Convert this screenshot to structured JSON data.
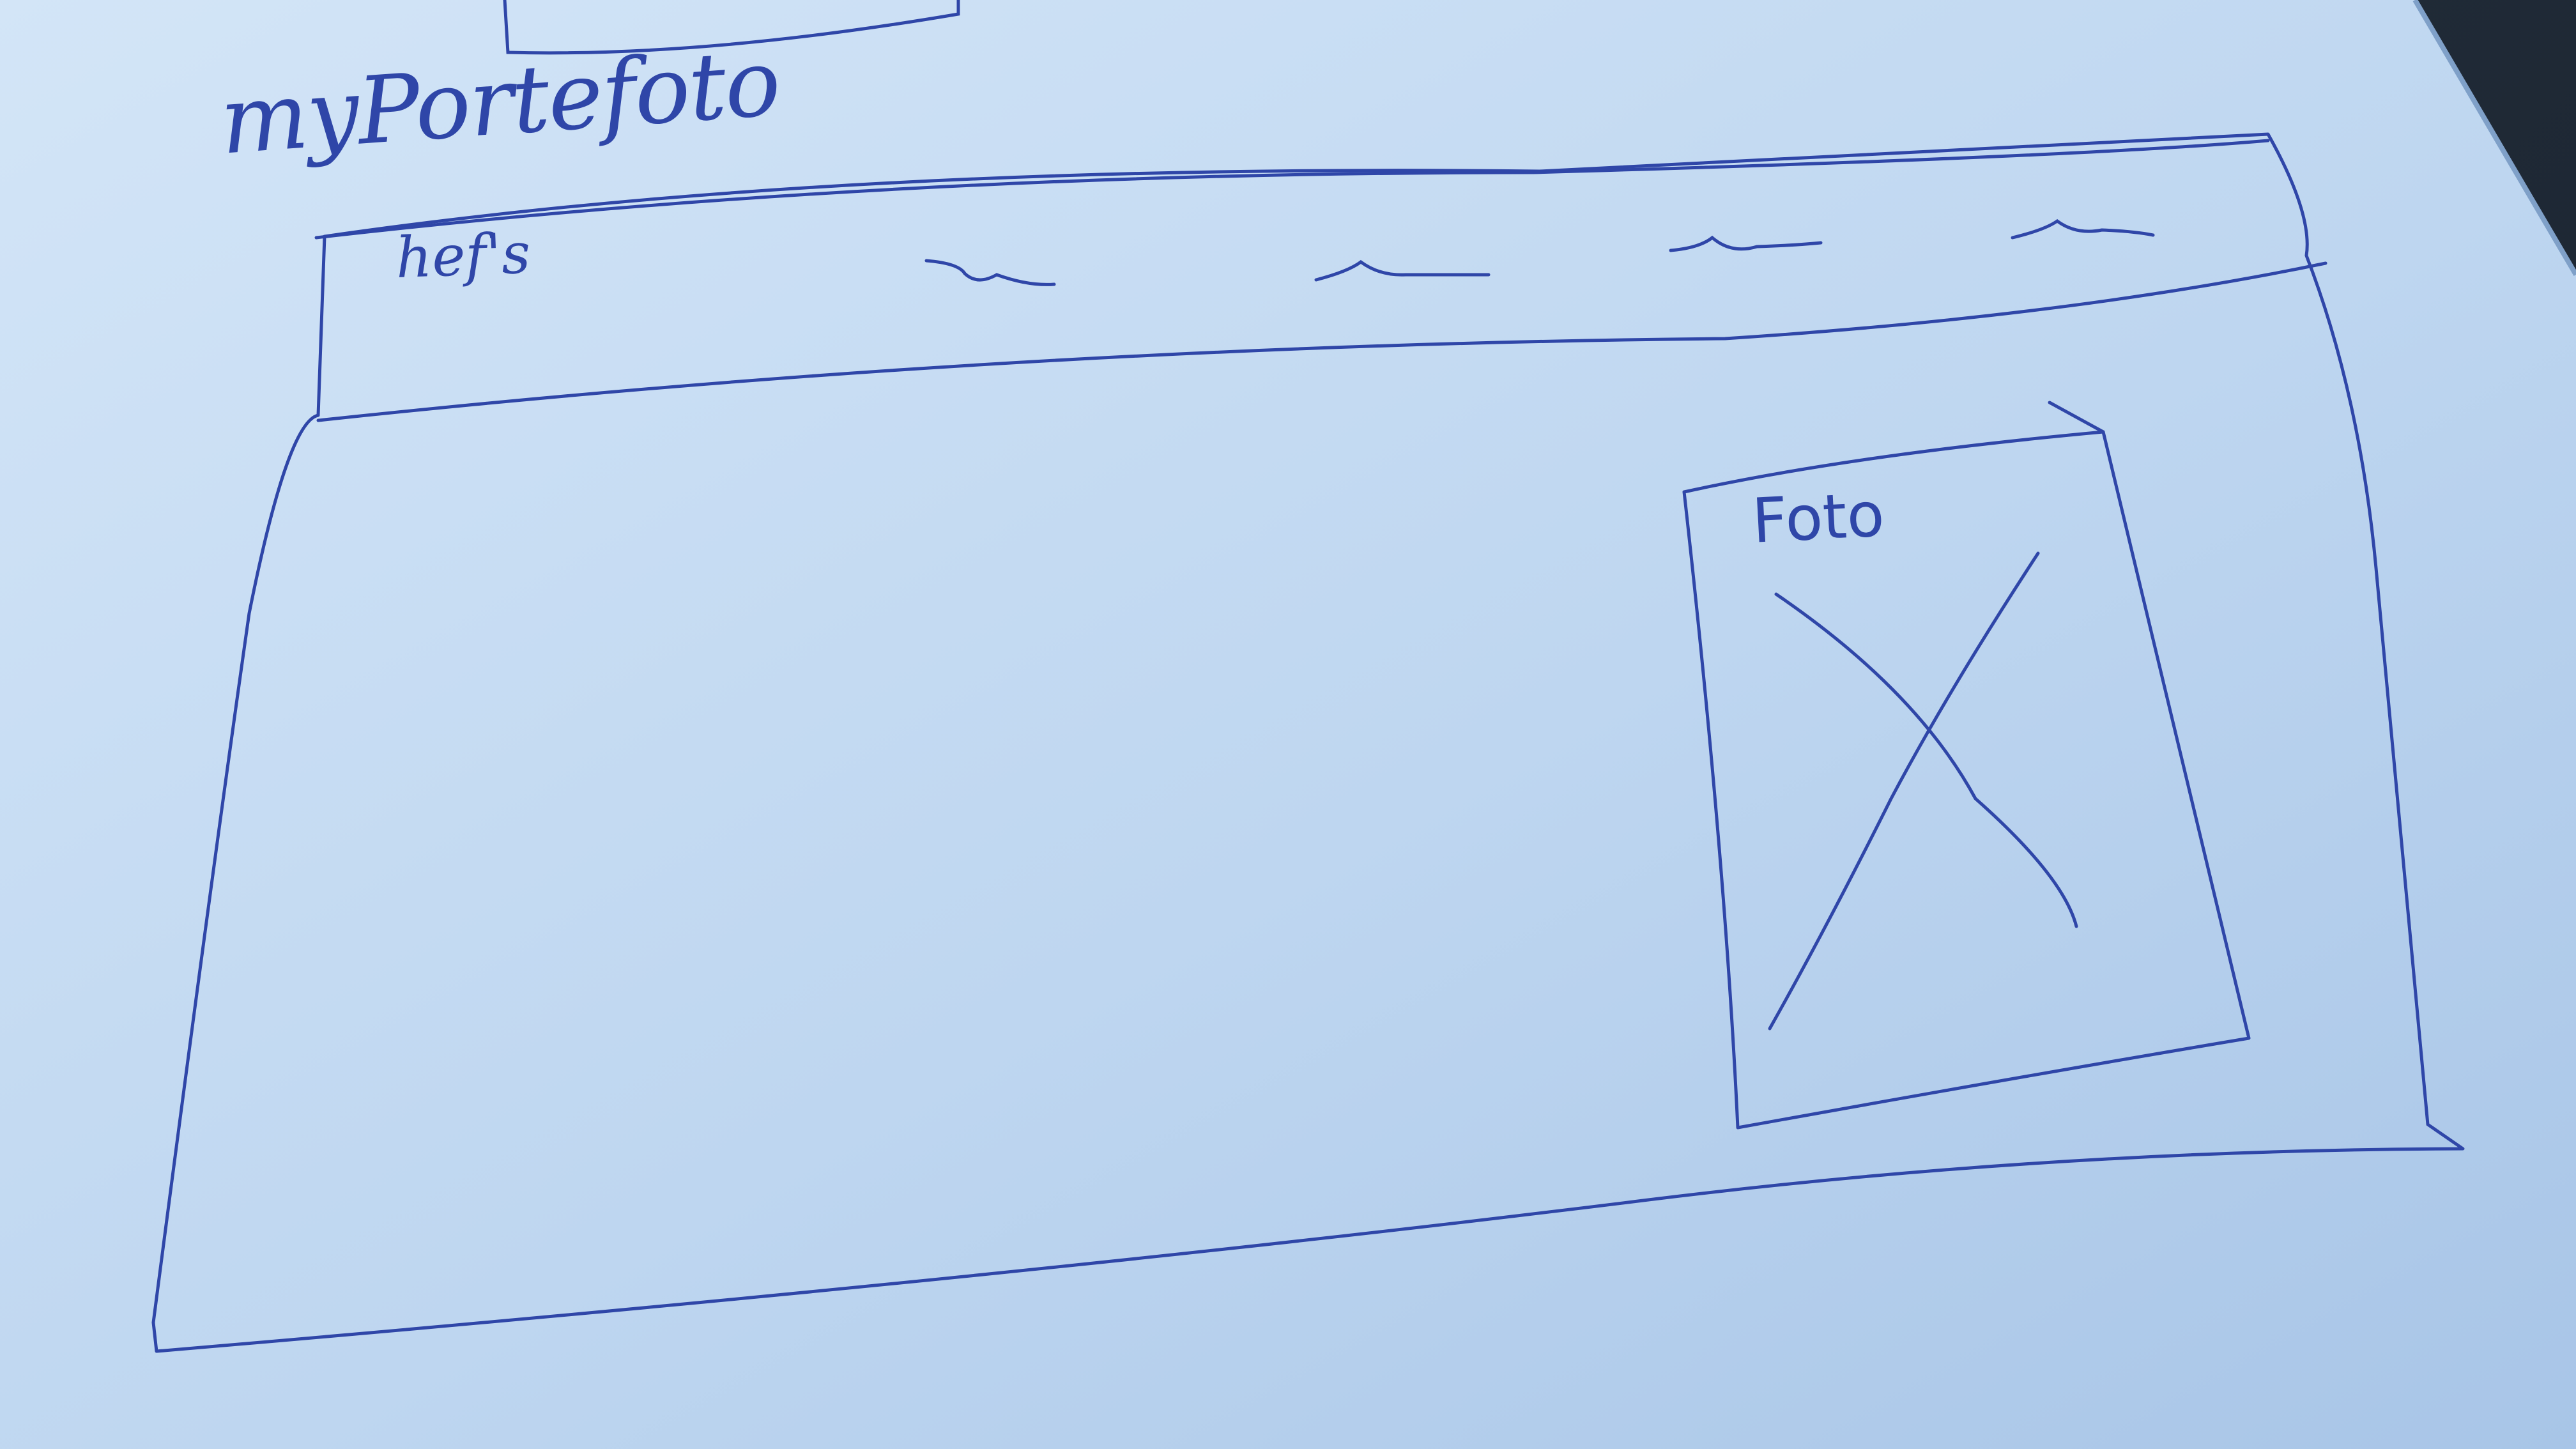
{
  "sketch": {
    "title": "myPortefoto",
    "navbar": {
      "brand_label": "hef's"
    },
    "main": {
      "photo_placeholder_label": "Foto"
    }
  },
  "colors": {
    "ink": "#2f46a8",
    "paper": "#c6dcf2",
    "paper_shadow": "#a9c7e8",
    "background": "#1f2a36"
  },
  "icons": {
    "nav_items": [
      "scribble-icon",
      "scribble-icon",
      "scribble-icon",
      "scribble-icon"
    ],
    "photo_placeholder": "image-placeholder-icon"
  }
}
